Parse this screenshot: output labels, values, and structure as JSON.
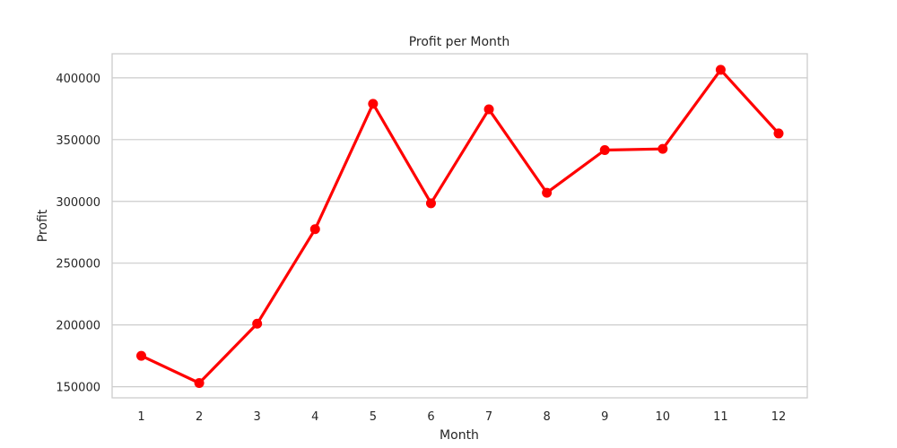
{
  "chart_data": {
    "type": "line",
    "title": "Profit per Month",
    "xlabel": "Month",
    "ylabel": "Profit",
    "categories": [
      "1",
      "2",
      "3",
      "4",
      "5",
      "6",
      "7",
      "8",
      "9",
      "10",
      "11",
      "12"
    ],
    "values": [
      175000,
      153000,
      201000,
      277500,
      379000,
      298500,
      374500,
      307000,
      341500,
      342500,
      406500,
      355000
    ],
    "yticks": [
      150000,
      200000,
      250000,
      300000,
      350000,
      400000
    ],
    "ytick_labels": [
      "150000",
      "200000",
      "250000",
      "300000",
      "350000",
      "400000"
    ],
    "ylim": [
      141000,
      419500
    ],
    "grid": "horizontal",
    "line_color": "#ff0000"
  }
}
